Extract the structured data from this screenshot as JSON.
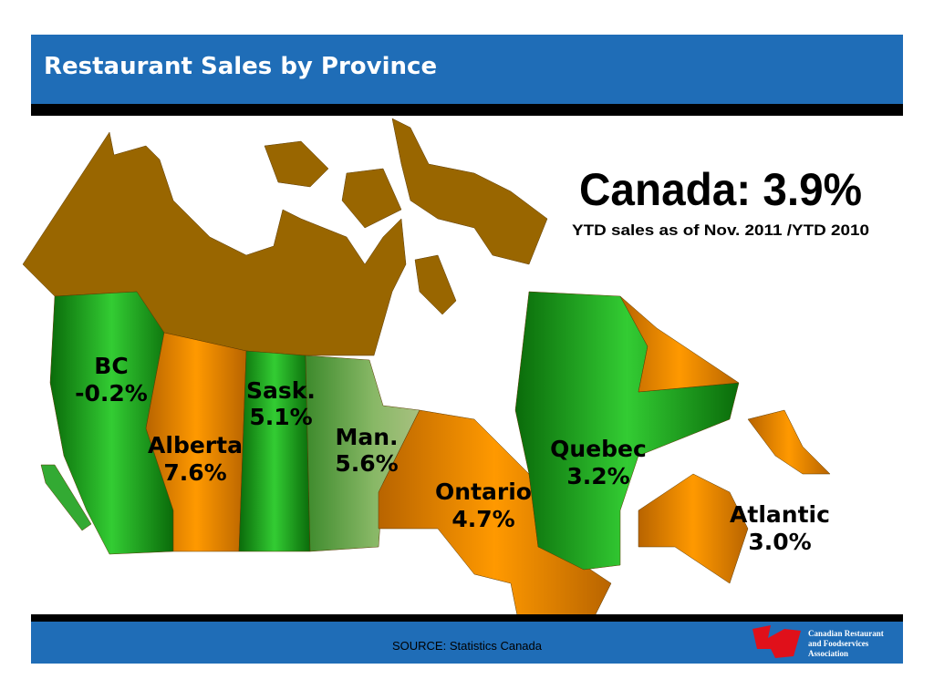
{
  "header": {
    "title": "Restaurant Sales by Province"
  },
  "headline": {
    "text": "Canada:  3.9%",
    "subtitle": "YTD  sales as of Nov. 2011 /YTD 2010"
  },
  "regions": [
    {
      "name": "BC",
      "value": "-0.2%"
    },
    {
      "name": "Alberta",
      "value": "7.6%"
    },
    {
      "name": "Sask.",
      "value": "5.1%"
    },
    {
      "name": "Man.",
      "value": "5.6%"
    },
    {
      "name": "Ontario",
      "value": "4.7%"
    },
    {
      "name": "Quebec",
      "value": "3.2%"
    },
    {
      "name": "Atlantic",
      "value": "3.0%"
    }
  ],
  "footer": {
    "source": "SOURCE:  Statistics Canada",
    "logo_text": [
      "Canadian Restaurant",
      "and Foodservices",
      "Association"
    ]
  }
}
